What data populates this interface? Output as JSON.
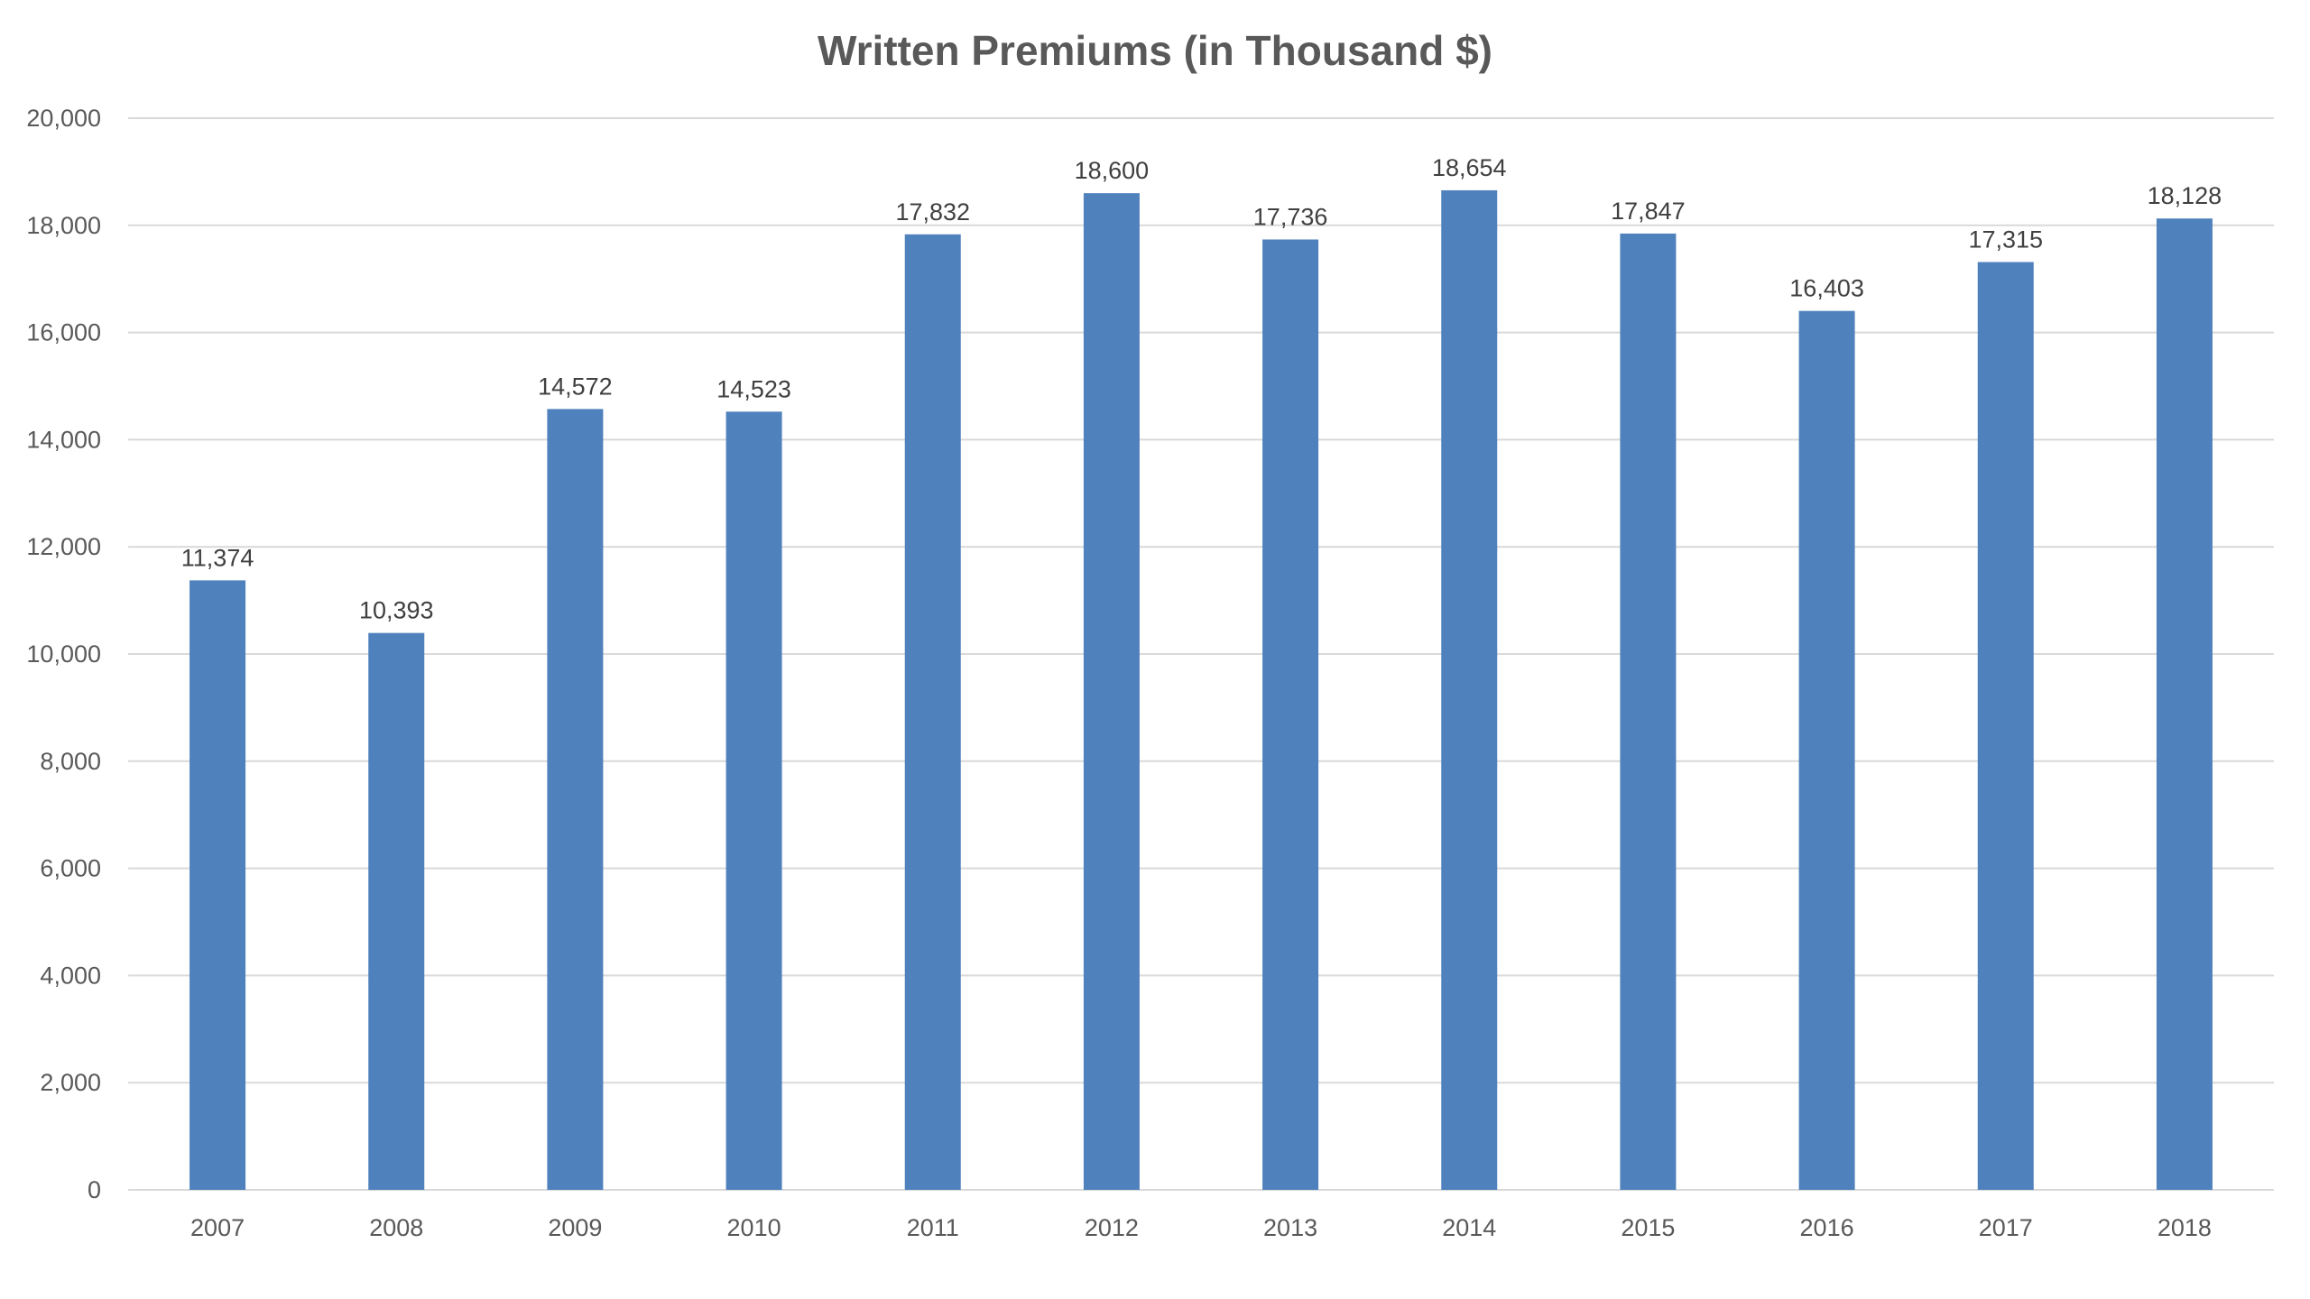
{
  "chart_data": {
    "type": "bar",
    "title": "Written Premiums  (in Thousand $)",
    "xlabel": "",
    "ylabel": "",
    "categories": [
      "2007",
      "2008",
      "2009",
      "2010",
      "2011",
      "2012",
      "2013",
      "2014",
      "2015",
      "2016",
      "2017",
      "2018"
    ],
    "values": [
      11374,
      10393,
      14572,
      14523,
      17832,
      18600,
      17736,
      18654,
      17847,
      16403,
      17315,
      18128
    ],
    "value_labels": [
      "11,374",
      "10,393",
      "14,572",
      "14,523",
      "17,832",
      "18,600",
      "17,736",
      "18,654",
      "17,847",
      "16,403",
      "17,315",
      "18,128"
    ],
    "ylim": [
      0,
      20000
    ],
    "y_ticks": [
      0,
      2000,
      4000,
      6000,
      8000,
      10000,
      12000,
      14000,
      16000,
      18000,
      20000
    ],
    "y_tick_labels": [
      "0",
      "2,000",
      "4,000",
      "6,000",
      "8,000",
      "10,000",
      "12,000",
      "14,000",
      "16,000",
      "18,000",
      "20,000"
    ],
    "grid": true,
    "legend": "none",
    "bar_color": "#4f81bd"
  }
}
